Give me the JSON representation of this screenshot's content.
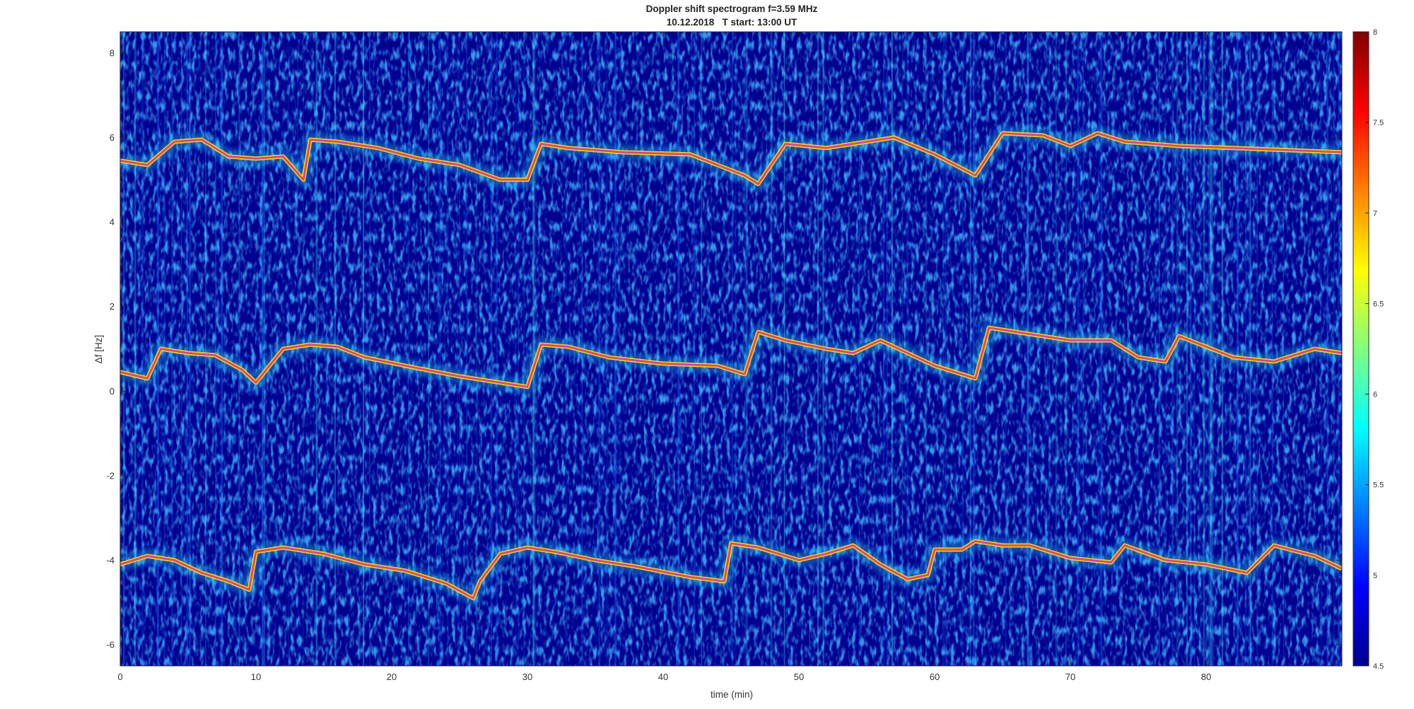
{
  "chart_data": {
    "type": "heatmap",
    "title": "Doppler shift spectrogram f=3.59 MHz",
    "subtitle": "10.12.2018   T start: 13:00 UT",
    "xlabel": "time (min)",
    "ylabel": "Δf [Hz]",
    "xlim": [
      0,
      90
    ],
    "ylim": [
      -6.5,
      8.5
    ],
    "xticks": [
      0,
      10,
      20,
      30,
      40,
      50,
      60,
      70,
      80
    ],
    "yticks": [
      -6,
      -4,
      -2,
      0,
      2,
      4,
      6,
      8
    ],
    "colorbar": {
      "range": [
        4.5,
        8
      ],
      "ticks": [
        5,
        5.5,
        6,
        6.5,
        7,
        7.5,
        8
      ],
      "colormap": "jet",
      "placement": "right"
    },
    "colors": {
      "background_intensity": "#00008f",
      "trace_peak": "#ff2000",
      "fit_line": "#e040e0",
      "fit_line_alt": "#000000"
    },
    "series": [
      {
        "x": [
          0,
          2,
          4,
          6,
          8,
          10,
          12,
          13.5,
          14,
          16,
          19,
          22,
          25,
          28,
          30,
          31,
          33,
          37,
          42,
          46,
          47,
          49,
          52,
          55,
          57,
          60,
          63,
          65,
          68,
          70,
          72,
          74,
          78,
          82,
          86,
          90
        ],
        "y": [
          5.45,
          5.35,
          5.9,
          5.95,
          5.55,
          5.5,
          5.55,
          5.0,
          5.95,
          5.9,
          5.75,
          5.5,
          5.35,
          5.0,
          5.0,
          5.85,
          5.75,
          5.65,
          5.6,
          5.1,
          4.9,
          5.85,
          5.75,
          5.9,
          6.0,
          5.6,
          5.1,
          6.1,
          6.05,
          5.8,
          6.1,
          5.9,
          5.8,
          5.75,
          5.7,
          5.65
        ]
      },
      {
        "x": [
          0,
          2,
          3,
          5,
          7,
          9,
          10,
          12,
          14,
          16,
          18,
          21,
          25,
          28,
          30,
          31,
          33,
          36,
          40,
          44,
          46,
          47,
          49,
          52,
          54,
          56,
          60,
          63,
          64,
          67,
          70,
          73,
          75,
          77,
          78,
          82,
          85,
          88,
          90
        ],
        "y": [
          0.45,
          0.3,
          1.0,
          0.9,
          0.85,
          0.5,
          0.2,
          1.0,
          1.1,
          1.05,
          0.8,
          0.6,
          0.35,
          0.2,
          0.1,
          1.1,
          1.05,
          0.8,
          0.65,
          0.6,
          0.4,
          1.4,
          1.2,
          1.0,
          0.9,
          1.2,
          0.6,
          0.3,
          1.5,
          1.35,
          1.2,
          1.2,
          0.8,
          0.7,
          1.3,
          0.8,
          0.7,
          1.0,
          0.9
        ]
      },
      {
        "x": [
          0,
          2,
          4,
          6,
          8,
          9.5,
          10,
          12,
          15,
          18,
          21,
          24,
          26,
          26.5,
          28,
          30,
          32,
          35,
          38,
          42,
          44.5,
          45,
          47,
          50,
          52,
          54,
          56,
          58,
          59.5,
          60,
          62,
          63,
          65,
          67,
          70,
          73,
          74,
          77,
          80,
          83,
          85,
          88,
          90
        ],
        "y": [
          -4.1,
          -3.9,
          -4.0,
          -4.3,
          -4.5,
          -4.7,
          -3.8,
          -3.7,
          -3.85,
          -4.1,
          -4.25,
          -4.55,
          -4.9,
          -4.5,
          -3.85,
          -3.7,
          -3.8,
          -4.0,
          -4.15,
          -4.4,
          -4.5,
          -3.6,
          -3.7,
          -4.0,
          -3.85,
          -3.65,
          -4.1,
          -4.45,
          -4.35,
          -3.75,
          -3.75,
          -3.55,
          -3.65,
          -3.65,
          -3.95,
          -4.05,
          -3.65,
          -4.0,
          -4.1,
          -4.3,
          -3.65,
          -3.9,
          -4.2
        ]
      }
    ]
  }
}
